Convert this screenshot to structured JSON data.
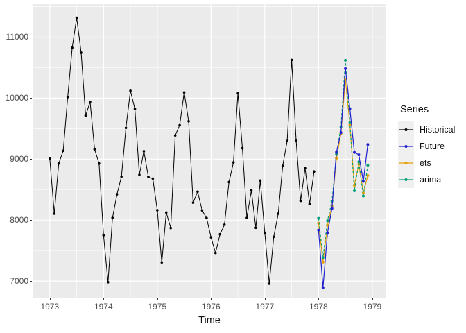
{
  "axis_titles": {
    "x": "Time",
    "y": ""
  },
  "legend": {
    "title": "Series",
    "key_fill": "#F0F0F0",
    "entries": [
      {
        "label": "Historical",
        "color": "#000000",
        "dashed": false
      },
      {
        "label": "Future",
        "color": "#2020D0",
        "dashed": false
      },
      {
        "label": "ets",
        "color": "#E69F00",
        "dashed": false
      },
      {
        "label": "arima",
        "color": "#009E73",
        "dashed": true
      }
    ]
  },
  "panel_style": {
    "background": "#EBEBEB",
    "gridline_color": "#FFFFFF",
    "tick_color": "#333333",
    "tick_label_color": "#4D4D4D"
  },
  "chart_data": {
    "type": "line",
    "title": "",
    "xlabel": "Time",
    "ylabel": "",
    "frequency": "monthly",
    "grid": "on",
    "legend_position": "right",
    "x_range": [
      1972.68,
      1979.26
    ],
    "y_range": [
      6717,
      11540
    ],
    "x_ticks": [
      1973,
      1974,
      1975,
      1976,
      1977,
      1978,
      1979
    ],
    "y_ticks": [
      7000,
      8000,
      9000,
      10000,
      11000
    ],
    "x_minor_gridlines": [
      1973.5,
      1974.5,
      1975.5,
      1976.5,
      1977.5,
      1978.5
    ],
    "y_minor_gridlines": [
      7500,
      8500,
      9500,
      10500,
      11500
    ],
    "series": [
      {
        "name": "Historical",
        "color": "#000000",
        "line": "solid",
        "start": 1973.0,
        "point_r": 1.8,
        "width": 1.0,
        "values": [
          9007,
          8106,
          8928,
          9137,
          10017,
          10826,
          11317,
          10744,
          9713,
          9938,
          9161,
          8927,
          7750,
          6981,
          8038,
          8422,
          8714,
          9512,
          10120,
          9823,
          8743,
          9129,
          8710,
          8680,
          8162,
          7306,
          8124,
          7870,
          9387,
          9556,
          10093,
          9620,
          8285,
          8466,
          8160,
          8034,
          7717,
          7461,
          7767,
          7925,
          8623,
          8945,
          10078,
          9179,
          8037,
          8488,
          7874,
          8647,
          7792,
          6957,
          7726,
          8106,
          8890,
          9299,
          10625,
          9302,
          8314,
          8850,
          8265,
          8796
        ]
      },
      {
        "name": "ets",
        "color": "#E69F00",
        "line": "solid",
        "start": 1978.0,
        "point_r": 2.0,
        "width": 1.2,
        "values": [
          7950,
          7310,
          7915,
          8230,
          9015,
          9420,
          10310,
          9560,
          8570,
          8915,
          8445,
          8730
        ]
      },
      {
        "name": "arima",
        "color": "#009E73",
        "line": "dashed",
        "start": 1978.0,
        "point_r": 2.0,
        "width": 1.2,
        "values": [
          8030,
          7385,
          7990,
          8310,
          9080,
          9530,
          10620,
          9595,
          8480,
          8955,
          8395,
          8900
        ]
      },
      {
        "name": "Future",
        "color": "#2020D0",
        "line": "solid",
        "start": 1978.0,
        "point_r": 2.0,
        "width": 1.2,
        "values": [
          7836,
          6892,
          7791,
          8192,
          9115,
          9434,
          10484,
          9827,
          9110,
          9070,
          8633,
          9240
        ]
      }
    ]
  }
}
